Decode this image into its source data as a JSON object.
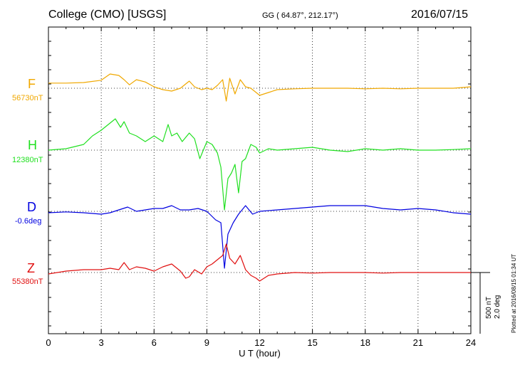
{
  "header": {
    "station": "College (CMO)  [USGS]",
    "coords": "GG ( 64.87°, 212.17°)",
    "date": "2016/07/15"
  },
  "channels": [
    {
      "letter": "F",
      "baseline": "56730nT",
      "color": "#f0a800"
    },
    {
      "letter": "H",
      "baseline": "12380nT",
      "color": "#20e020"
    },
    {
      "letter": "D",
      "baseline": "-0.6deg",
      "color": "#0000e0"
    },
    {
      "letter": "Z",
      "baseline": "55380nT",
      "color": "#e01010"
    }
  ],
  "scale": {
    "nt": "500 nT",
    "deg": "2.0 deg"
  },
  "footer_note": "Plotted at 2016/08/15 01:34 UT",
  "chart_data": {
    "type": "line",
    "xlabel": "U T (hour)",
    "xlim": [
      0,
      24
    ],
    "x_ticks": [
      "0",
      "3",
      "6",
      "9",
      "12",
      "15",
      "18",
      "21",
      "24"
    ],
    "grid": true,
    "series": [
      {
        "name": "F",
        "color": "#f0a800",
        "x": [
          0,
          1,
          2,
          3,
          3.5,
          4,
          4.3,
          4.6,
          5,
          5.5,
          6,
          6.5,
          7,
          7.5,
          7.8,
          8,
          8.3,
          8.7,
          9,
          9.3,
          9.6,
          9.9,
          10.1,
          10.3,
          10.6,
          10.9,
          11.2,
          11.5,
          11.8,
          12,
          12.5,
          13,
          14,
          15,
          16,
          17,
          18,
          19,
          20,
          21,
          22,
          23,
          24
        ],
        "y": [
          -0.18,
          -0.18,
          -0.2,
          -0.28,
          -0.5,
          -0.45,
          -0.3,
          -0.12,
          -0.3,
          -0.22,
          -0.05,
          0.05,
          0.1,
          0.0,
          -0.15,
          -0.25,
          -0.05,
          0.05,
          0.0,
          0.05,
          -0.1,
          -0.3,
          0.45,
          -0.35,
          0.2,
          -0.3,
          -0.05,
          0.0,
          0.15,
          0.25,
          0.15,
          0.05,
          0.02,
          0.0,
          0.0,
          0.0,
          0.02,
          0.0,
          0.02,
          0.0,
          0.0,
          0.0,
          -0.05
        ]
      },
      {
        "name": "H",
        "color": "#20e020",
        "x": [
          0,
          1,
          2,
          2.5,
          3,
          3.4,
          3.8,
          4.1,
          4.3,
          4.6,
          5,
          5.5,
          6,
          6.5,
          6.8,
          7,
          7.3,
          7.6,
          8,
          8.3,
          8.6,
          9,
          9.3,
          9.6,
          9.8,
          10,
          10.2,
          10.4,
          10.6,
          10.8,
          11.0,
          11.2,
          11.5,
          11.8,
          12,
          12.5,
          13,
          14,
          15,
          16,
          17,
          18,
          19,
          20,
          21,
          22,
          23,
          24
        ],
        "y": [
          0.0,
          -0.05,
          -0.2,
          -0.5,
          -0.7,
          -0.9,
          -1.1,
          -0.8,
          -1.0,
          -0.6,
          -0.5,
          -0.3,
          -0.5,
          -0.3,
          -0.9,
          -0.5,
          -0.6,
          -0.3,
          -0.6,
          -0.4,
          0.3,
          -0.3,
          -0.2,
          0.1,
          0.6,
          2.1,
          1.0,
          0.8,
          0.5,
          1.5,
          0.4,
          0.3,
          -0.2,
          -0.1,
          0.1,
          -0.05,
          0.0,
          -0.05,
          -0.1,
          0.0,
          0.05,
          -0.05,
          0.0,
          -0.05,
          0.0,
          0.0,
          -0.02,
          -0.05
        ]
      },
      {
        "name": "D",
        "color": "#0000e0",
        "x": [
          0,
          1,
          2,
          3,
          3.5,
          4,
          4.5,
          5,
          5.5,
          6,
          6.5,
          7,
          7.5,
          8,
          8.5,
          9,
          9.5,
          9.8,
          10.0,
          10.2,
          10.5,
          10.8,
          11.2,
          11.6,
          12,
          13,
          14,
          15,
          16,
          17,
          18,
          19,
          20,
          21,
          22,
          23,
          24
        ],
        "y": [
          0.05,
          0.02,
          0.05,
          0.1,
          0.05,
          -0.05,
          -0.15,
          0.0,
          -0.05,
          -0.1,
          -0.1,
          -0.2,
          -0.05,
          -0.05,
          -0.1,
          0.0,
          0.3,
          0.4,
          2.0,
          0.8,
          0.4,
          0.1,
          -0.2,
          0.1,
          0.0,
          -0.05,
          -0.1,
          -0.15,
          -0.2,
          -0.2,
          -0.2,
          -0.1,
          -0.05,
          -0.1,
          -0.05,
          0.05,
          0.1
        ]
      },
      {
        "name": "Z",
        "color": "#e01010",
        "x": [
          0,
          1,
          2,
          3,
          3.5,
          4,
          4.3,
          4.6,
          5,
          5.5,
          6,
          6.5,
          7,
          7.5,
          7.8,
          8,
          8.3,
          8.7,
          9,
          9.3,
          9.6,
          9.9,
          10.1,
          10.3,
          10.6,
          10.9,
          11.2,
          11.5,
          11.8,
          12,
          12.5,
          13,
          14,
          15,
          16,
          17,
          18,
          19,
          20,
          21,
          22,
          23,
          24
        ],
        "y": [
          0.05,
          -0.05,
          -0.1,
          -0.1,
          -0.15,
          -0.1,
          -0.35,
          -0.1,
          -0.2,
          -0.15,
          -0.05,
          -0.2,
          -0.3,
          -0.05,
          0.2,
          0.15,
          -0.1,
          0.05,
          -0.2,
          -0.3,
          -0.45,
          -0.6,
          -1.0,
          -0.5,
          -0.3,
          -0.6,
          -0.1,
          0.1,
          0.2,
          0.3,
          0.1,
          0.05,
          0.0,
          0.02,
          0.0,
          0.0,
          0.0,
          0.02,
          0.0,
          0.0,
          0.0,
          0.0,
          0.0
        ]
      }
    ]
  }
}
